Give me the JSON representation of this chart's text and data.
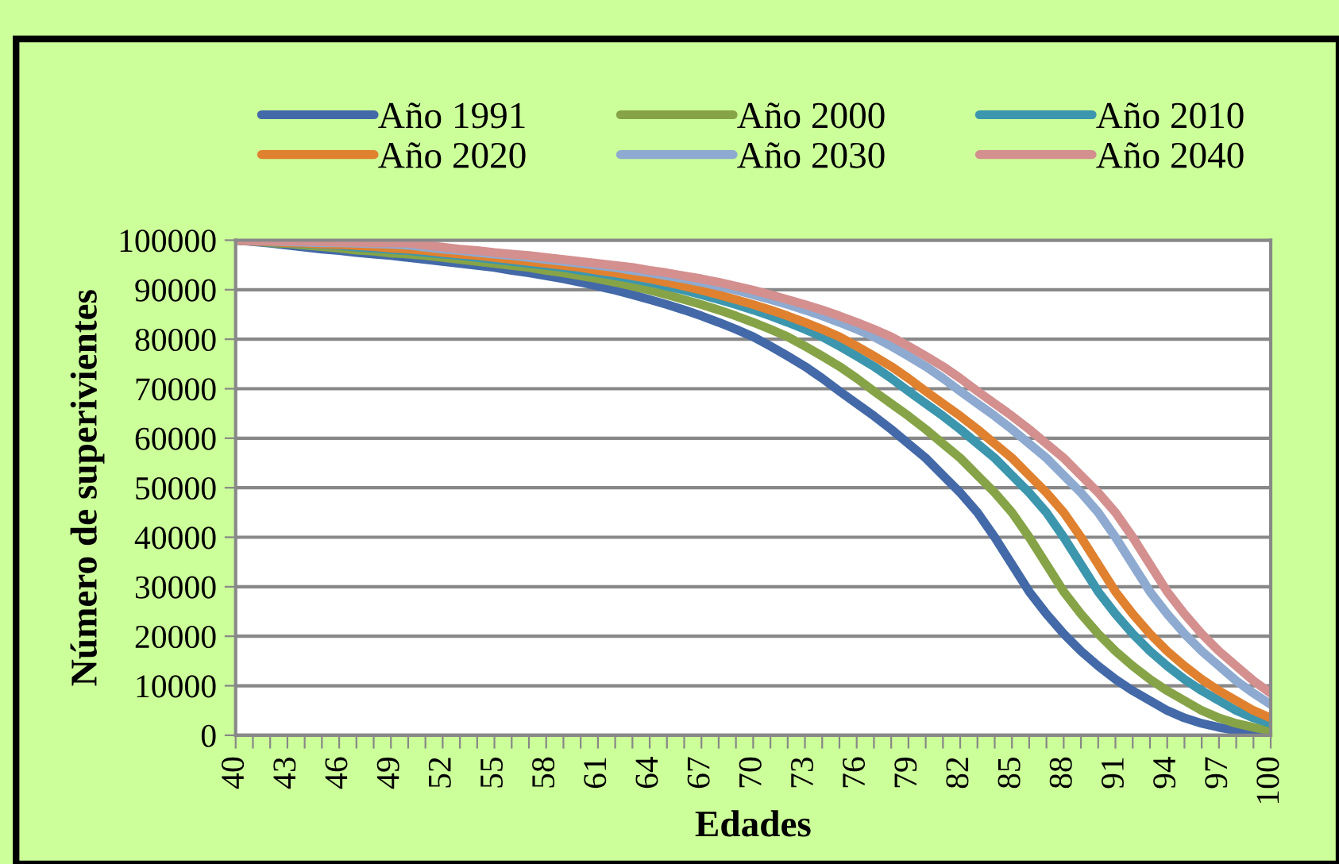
{
  "chart_data": {
    "type": "line",
    "xlabel": "Edades",
    "ylabel": "Número de superivientes",
    "categories": [
      "40",
      null,
      null,
      "43",
      null,
      null,
      "46",
      null,
      null,
      "49",
      null,
      null,
      "52",
      null,
      null,
      "55",
      null,
      null,
      "58",
      null,
      null,
      "61",
      null,
      null,
      "64",
      null,
      null,
      "67",
      null,
      null,
      "70",
      null,
      null,
      "73",
      null,
      null,
      "76",
      null,
      null,
      "79",
      null,
      null,
      "82",
      null,
      null,
      "85",
      null,
      null,
      "88",
      null,
      null,
      "91",
      null,
      null,
      "94",
      null,
      null,
      "97",
      null,
      null,
      "100"
    ],
    "ylim": [
      0,
      100000
    ],
    "yticks": [
      0,
      10000,
      20000,
      30000,
      40000,
      50000,
      60000,
      70000,
      80000,
      90000,
      100000
    ],
    "grid": "y",
    "legend": "top",
    "marker": "none",
    "line_style": "solid",
    "series": [
      {
        "name": "Año 1991",
        "color": "#4369a8",
        "values": [
          100000,
          99700,
          99400,
          99000,
          98600,
          98200,
          97900,
          97500,
          97200,
          96900,
          96500,
          96100,
          95700,
          95300,
          94900,
          94500,
          93900,
          93400,
          92800,
          92200,
          91500,
          90700,
          89900,
          89000,
          88000,
          87000,
          85900,
          84700,
          83400,
          82000,
          80500,
          78600,
          76600,
          74500,
          72100,
          69500,
          67000,
          64500,
          61800,
          58900,
          56000,
          52500,
          49000,
          45000,
          40000,
          34500,
          29000,
          24500,
          20500,
          17000,
          14000,
          11300,
          9000,
          7000,
          5000,
          3500,
          2400,
          1600,
          1000,
          600,
          400
        ]
      },
      {
        "name": "Año 2000",
        "color": "#86a447",
        "values": [
          100000,
          99800,
          99500,
          99300,
          99000,
          98700,
          98400,
          98000,
          97800,
          97400,
          97200,
          96900,
          96500,
          96100,
          95700,
          95300,
          94900,
          94500,
          93900,
          93400,
          92800,
          92200,
          91500,
          90700,
          89900,
          89000,
          88000,
          87000,
          85900,
          84700,
          83400,
          82000,
          80500,
          78600,
          76600,
          74500,
          72100,
          69500,
          67000,
          64500,
          61800,
          58900,
          56000,
          52500,
          49000,
          45000,
          40000,
          34500,
          29000,
          24500,
          20500,
          17000,
          14000,
          11300,
          9000,
          7000,
          5000,
          3500,
          2400,
          1600,
          1000
        ]
      },
      {
        "name": "Año 2010",
        "color": "#3c96ad",
        "values": [
          100000,
          99800,
          99600,
          99500,
          99300,
          99100,
          98900,
          98600,
          98400,
          98100,
          97900,
          97500,
          97200,
          96900,
          96500,
          96100,
          95700,
          95300,
          94900,
          94500,
          93900,
          93400,
          92800,
          92200,
          91500,
          90700,
          89900,
          89000,
          88000,
          87000,
          85900,
          84700,
          83400,
          82000,
          80500,
          78600,
          76600,
          74500,
          72100,
          69500,
          67000,
          64500,
          61800,
          58900,
          56000,
          52500,
          49000,
          45000,
          40000,
          34500,
          29000,
          24500,
          20500,
          17000,
          14000,
          11300,
          9000,
          7000,
          5000,
          3500,
          2400
        ]
      },
      {
        "name": "Año 2020",
        "color": "#e0812f",
        "values": [
          100000,
          99800,
          99700,
          99500,
          99400,
          99200,
          99100,
          98900,
          98700,
          98400,
          98200,
          97900,
          97500,
          97200,
          96900,
          96500,
          96100,
          95700,
          95300,
          94900,
          94500,
          93900,
          93400,
          92800,
          92200,
          91500,
          90700,
          89900,
          89000,
          88000,
          87000,
          85900,
          84700,
          83400,
          82000,
          80500,
          78600,
          76600,
          74500,
          72100,
          69500,
          67000,
          64500,
          61800,
          58900,
          56000,
          52500,
          49000,
          45000,
          40000,
          34500,
          29000,
          24500,
          20500,
          17000,
          14000,
          11300,
          9000,
          7000,
          5000,
          3500
        ]
      },
      {
        "name": "Año 2030",
        "color": "#8eaad0",
        "values": [
          100000,
          99900,
          99800,
          99700,
          99600,
          99500,
          99500,
          99400,
          99300,
          99200,
          99000,
          98600,
          98200,
          97900,
          97500,
          97200,
          96900,
          96500,
          96100,
          95700,
          95300,
          94900,
          94500,
          93900,
          93400,
          92800,
          92200,
          91500,
          90700,
          89900,
          89000,
          88000,
          87000,
          85900,
          84700,
          83400,
          82000,
          80500,
          78600,
          76600,
          74500,
          72100,
          69500,
          67000,
          64500,
          61800,
          58900,
          56000,
          52500,
          49000,
          45000,
          40000,
          34500,
          29000,
          24500,
          20500,
          17000,
          14000,
          11000,
          8500,
          6200
        ]
      },
      {
        "name": "Año 2040",
        "color": "#d48f8f",
        "values": [
          100000,
          99900,
          99900,
          99800,
          99800,
          99700,
          99600,
          99600,
          99500,
          99500,
          99400,
          99000,
          98600,
          98200,
          97900,
          97500,
          97200,
          96900,
          96500,
          96100,
          95700,
          95300,
          94900,
          94500,
          93900,
          93400,
          92800,
          92200,
          91500,
          90700,
          89900,
          89000,
          88000,
          87000,
          85900,
          84700,
          83400,
          82000,
          80500,
          78600,
          76600,
          74500,
          72100,
          69500,
          67000,
          64500,
          61800,
          58900,
          56000,
          52500,
          49000,
          45000,
          40000,
          34500,
          29000,
          24500,
          20500,
          17000,
          14000,
          11000,
          8500
        ]
      }
    ]
  }
}
